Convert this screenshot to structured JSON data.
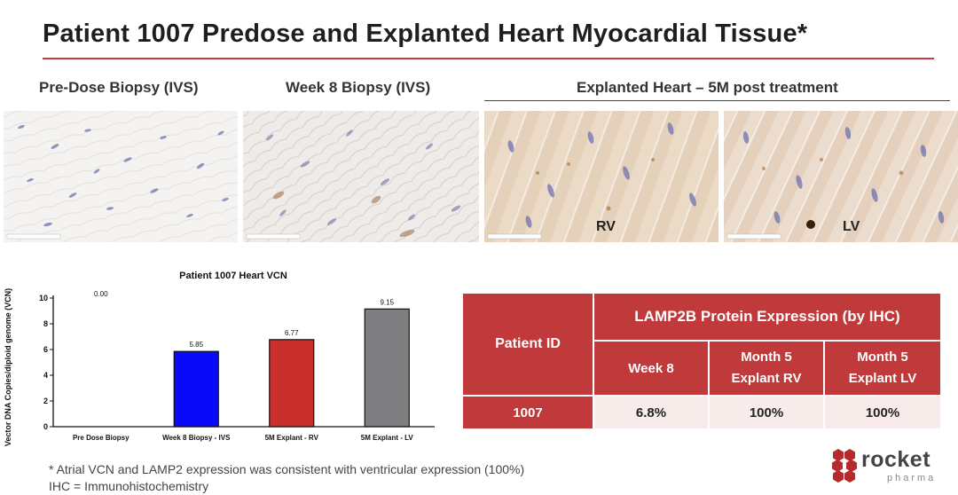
{
  "title": "Patient 1007 Predose and Explanted Heart Myocardial Tissue*",
  "panels": {
    "predose_label": "Pre-Dose Biopsy (IVS)",
    "week8_label": "Week 8 Biopsy (IVS)",
    "explant_label": "Explanted Heart – 5M post treatment",
    "rv_label": "RV",
    "lv_label": "LV"
  },
  "colors": {
    "title_rule": "#c63b3b",
    "table_red": "#c0393b",
    "table_pink": "#f8eceb",
    "bar_blue": "#0a0afa",
    "bar_red": "#c9302c",
    "bar_gray": "#7f7e80"
  },
  "chart_data": {
    "type": "bar",
    "title": "Patient 1007 Heart VCN",
    "ylabel": "Vector DNA Copies/diploid genome (VCN)",
    "xlabel": "",
    "categories": [
      "Pre Dose Biopsy",
      "Week 8 Biopsy - IVS",
      "5M Explant - RV",
      "5M Explant - LV"
    ],
    "values": [
      0.0,
      5.85,
      6.77,
      9.15
    ],
    "value_labels": [
      "0.00",
      "5.85",
      "6.77",
      "9.15"
    ],
    "bar_colors": [
      "#0a0afa",
      "#0a0afa",
      "#c9302c",
      "#7f7e80"
    ],
    "ylim": [
      0,
      10
    ],
    "yticks": [
      0,
      2,
      4,
      6,
      8,
      10
    ],
    "grid": false,
    "legend": "none"
  },
  "table": {
    "header_patient": "Patient ID",
    "header_group": "LAMP2B Protein Expression (by IHC)",
    "col_week8": "Week 8",
    "col_rv_line1": "Month 5",
    "col_rv_line2": "Explant RV",
    "col_lv_line1": "Month 5",
    "col_lv_line2": "Explant LV",
    "row_id": "1007",
    "row_week8": "6.8%",
    "row_rv": "100%",
    "row_lv": "100%"
  },
  "footnotes": {
    "line1": "* Atrial VCN and LAMP2 expression was consistent with ventricular expression (100%)",
    "line2": "IHC = Immunohistochemistry"
  },
  "logo": {
    "word": "rocket",
    "sub": "pharma"
  }
}
